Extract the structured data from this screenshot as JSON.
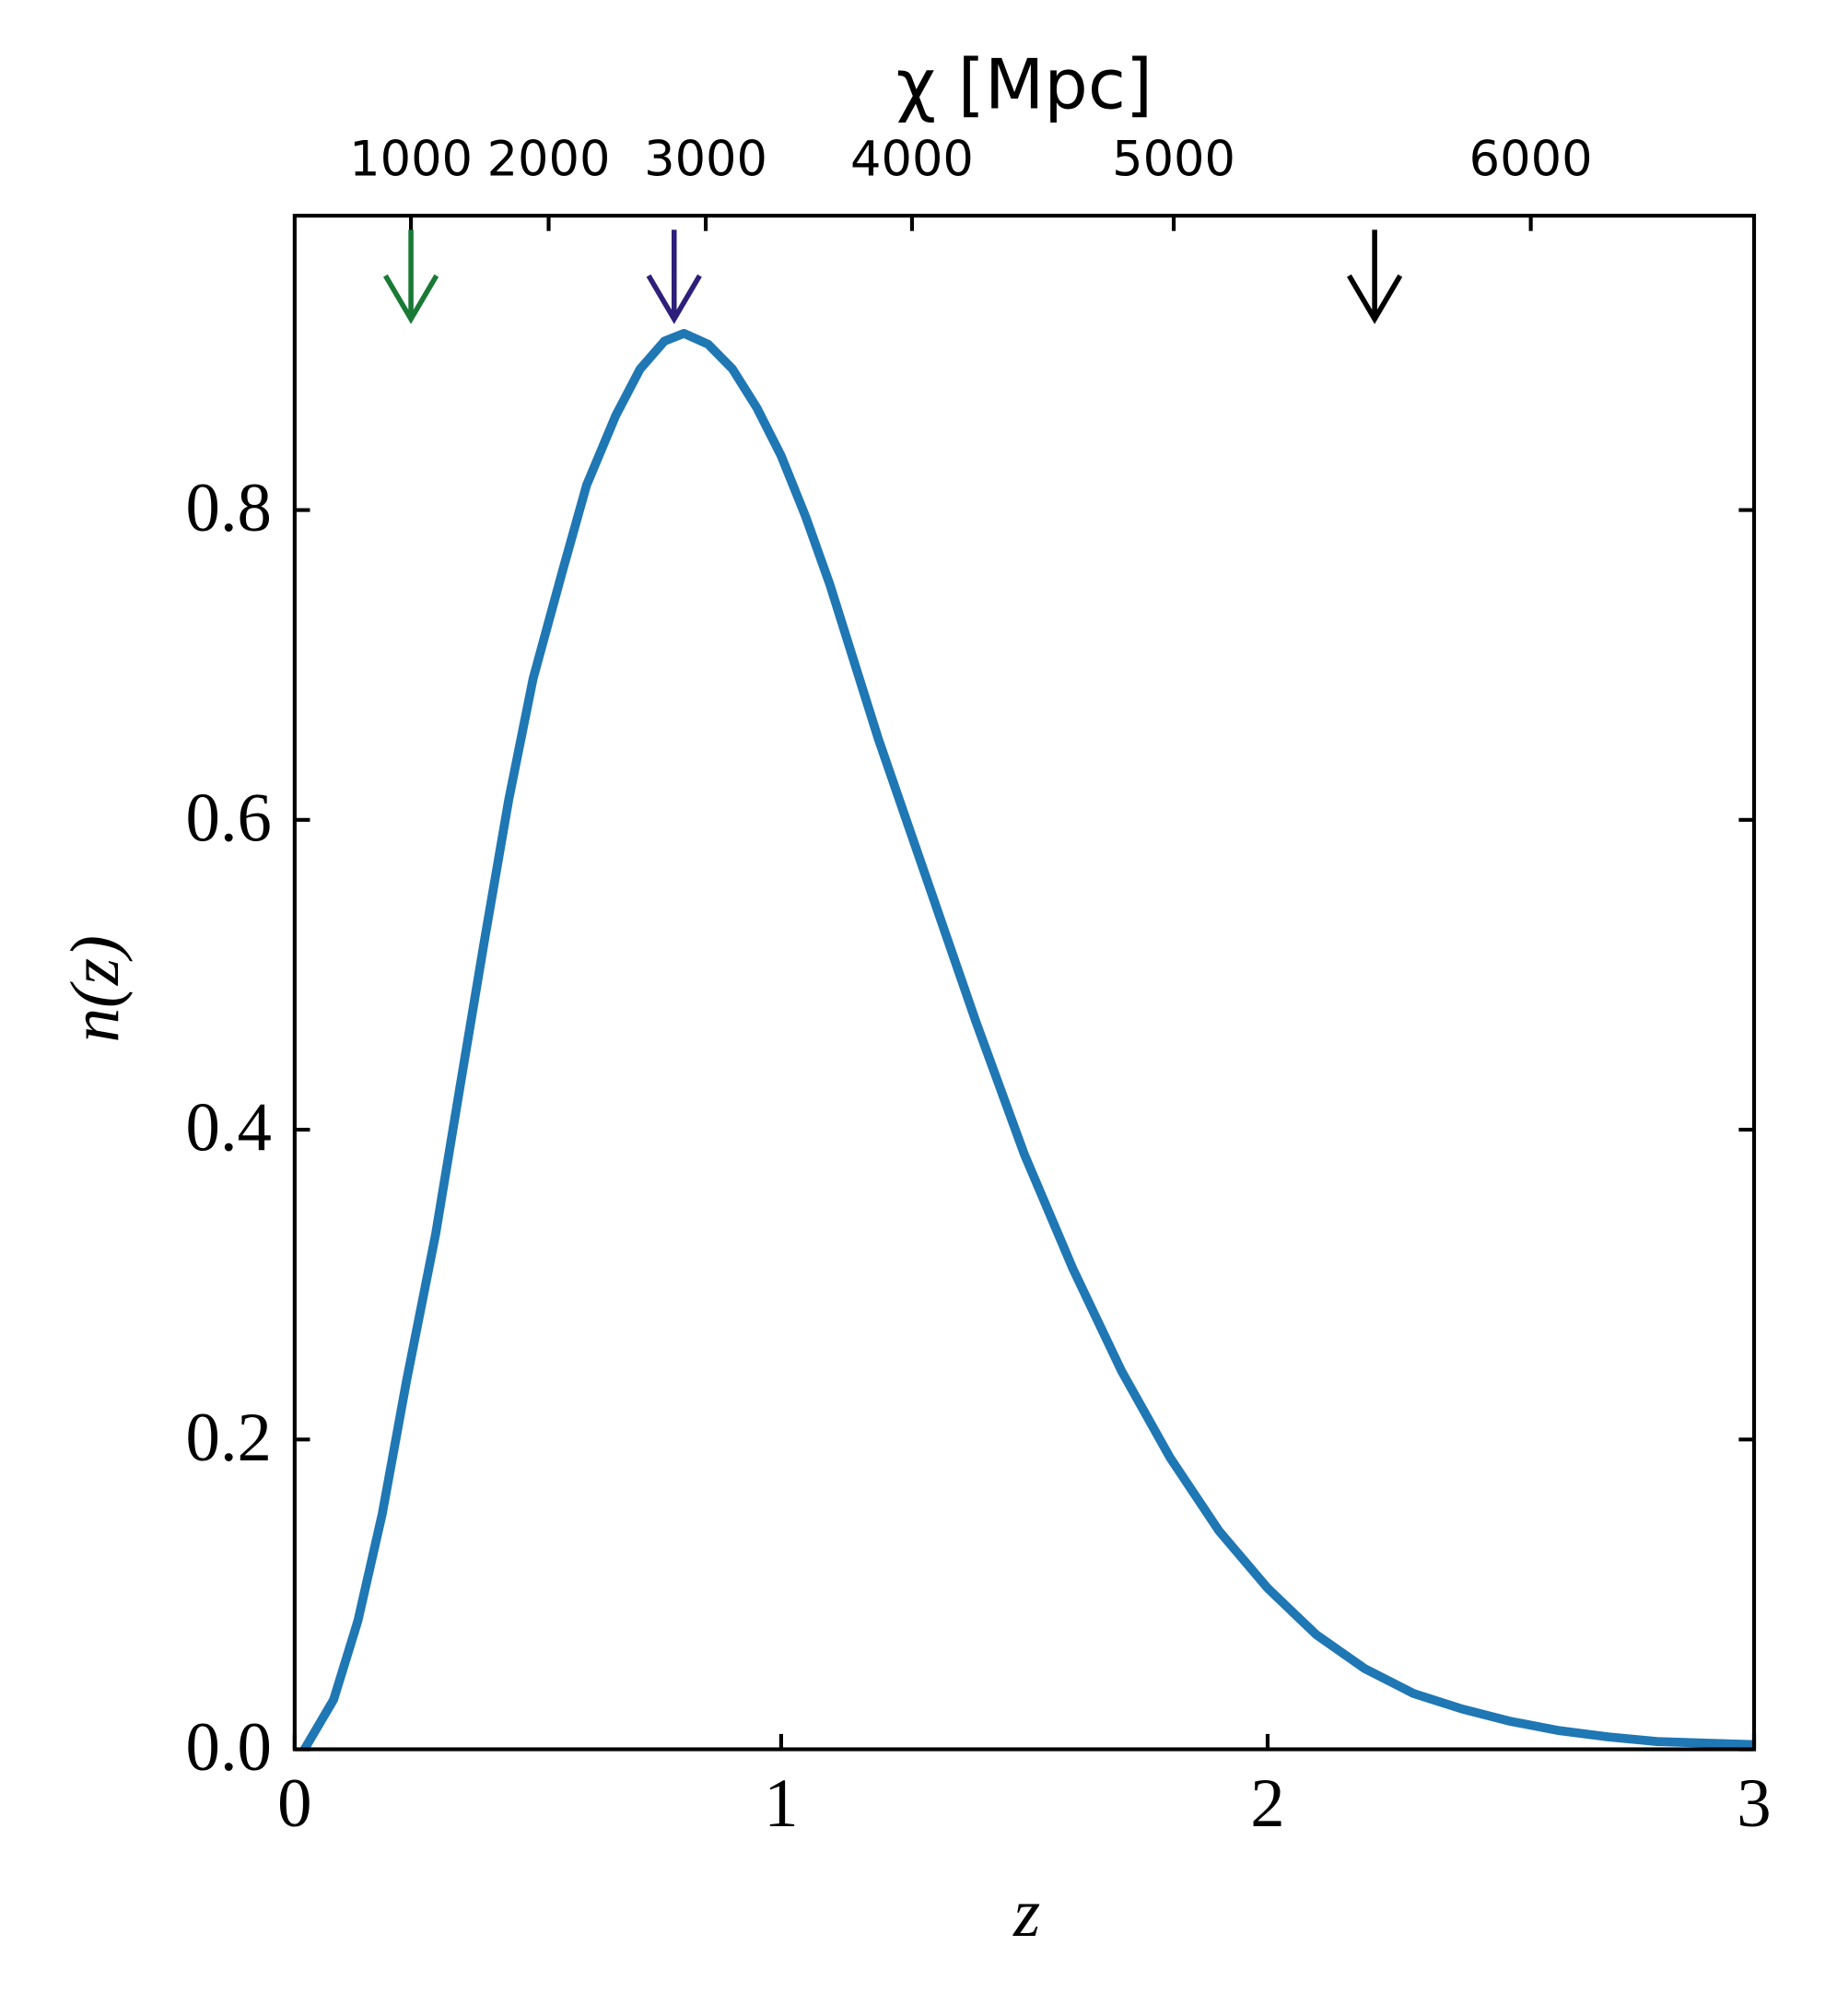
{
  "chart_data": {
    "type": "line",
    "xlabel": "z",
    "ylabel": "n(z)",
    "x2label": "χ [Mpc]",
    "x": [
      0.02,
      0.08,
      0.13,
      0.18,
      0.23,
      0.29,
      0.34,
      0.39,
      0.44,
      0.49,
      0.55,
      0.6,
      0.66,
      0.71,
      0.76,
      0.8,
      0.85,
      0.9,
      0.95,
      1.0,
      1.05,
      1.1,
      1.2,
      1.3,
      1.4,
      1.5,
      1.6,
      1.7,
      1.8,
      1.9,
      2.0,
      2.1,
      2.2,
      2.3,
      2.4,
      2.5,
      2.6,
      2.7,
      2.8,
      2.9,
      3.0
    ],
    "series": [
      {
        "name": "n(z)",
        "color": "#1f77b4",
        "values": [
          0,
          0.032,
          0.083,
          0.152,
          0.238,
          0.333,
          0.428,
          0.522,
          0.613,
          0.691,
          0.76,
          0.816,
          0.861,
          0.891,
          0.909,
          0.914,
          0.907,
          0.891,
          0.866,
          0.835,
          0.796,
          0.752,
          0.652,
          0.561,
          0.47,
          0.384,
          0.31,
          0.244,
          0.188,
          0.141,
          0.104,
          0.074,
          0.052,
          0.036,
          0.026,
          0.018,
          0.012,
          0.008,
          0.005,
          0.004,
          0.003
        ]
      }
    ],
    "xlim": [
      0,
      3
    ],
    "ylim": [
      0,
      0.99
    ],
    "xticks": [
      0,
      1,
      2,
      3
    ],
    "yticks": [
      {
        "value": 0,
        "label": "0.0"
      },
      {
        "value": 0.2,
        "label": "0.2"
      },
      {
        "value": 0.4,
        "label": "0.4"
      },
      {
        "value": 0.6,
        "label": "0.6"
      },
      {
        "value": 0.8,
        "label": "0.8"
      }
    ],
    "x2ticks": [
      {
        "value": 0.239,
        "label": "1000"
      },
      {
        "value": 0.522,
        "label": "2000"
      },
      {
        "value": 0.845,
        "label": "3000"
      },
      {
        "value": 1.269,
        "label": "4000"
      },
      {
        "value": 1.807,
        "label": "5000"
      },
      {
        "value": 2.541,
        "label": "6000"
      }
    ],
    "arrows": [
      {
        "x": 0.239,
        "color": "#1a7a35"
      },
      {
        "x": 0.78,
        "color": "#2e1f7a"
      },
      {
        "x": 2.22,
        "color": "#000000"
      }
    ]
  }
}
